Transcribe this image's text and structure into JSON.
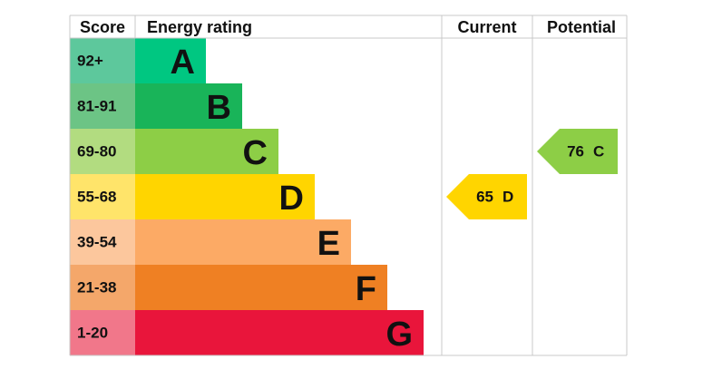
{
  "header": {
    "score": "Score",
    "rating": "Energy rating",
    "current": "Current",
    "potential": "Potential"
  },
  "rows": [
    {
      "score": "92+",
      "rating": "A",
      "color": "#00c781",
      "score_color": "#5dc89c"
    },
    {
      "score": "81-91",
      "rating": "B",
      "color": "#19b459",
      "score_color": "#6cc485"
    },
    {
      "score": "69-80",
      "rating": "C",
      "color": "#8dce46",
      "score_color": "#b2dc80"
    },
    {
      "score": "55-68",
      "rating": "D",
      "color": "#ffd500",
      "score_color": "#ffe46a"
    },
    {
      "score": "39-54",
      "rating": "E",
      "color": "#fcaa65",
      "score_color": "#fcc79d"
    },
    {
      "score": "21-38",
      "rating": "F",
      "color": "#ef8023",
      "score_color": "#f4a76a"
    },
    {
      "score": "1-20",
      "rating": "G",
      "color": "#e9153b",
      "score_color": "#f1778a"
    }
  ],
  "current": {
    "score": 65,
    "rating": "D",
    "color": "#ffd500"
  },
  "potential": {
    "score": 76,
    "rating": "C",
    "color": "#8dce46"
  }
}
